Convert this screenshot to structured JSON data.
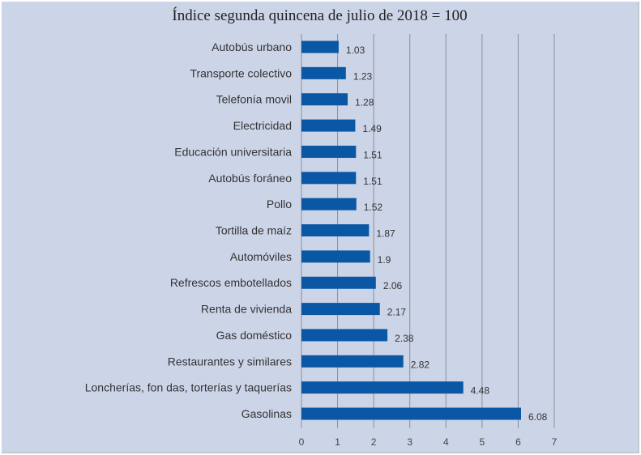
{
  "chart_data": {
    "type": "bar",
    "orientation": "horizontal",
    "title": "Índice segunda quincena de julio de 2018 = 100",
    "categories": [
      "Autobús urbano",
      "Transporte colectivo",
      "Telefonía movil",
      "Electricidad",
      "Educación universitaria",
      "Autobús foráneo",
      "Pollo",
      "Tortilla de maíz",
      "Automóviles",
      "Refrescos embotellados",
      "Renta de vivienda",
      "Gas doméstico",
      "Restaurantes y similares",
      "Loncherías, fon das, torterías y taquerías",
      "Gasolinas"
    ],
    "values": [
      1.03,
      1.23,
      1.28,
      1.49,
      1.51,
      1.51,
      1.52,
      1.87,
      1.9,
      2.06,
      2.17,
      2.38,
      2.82,
      4.48,
      6.08
    ],
    "value_labels": [
      "1.03",
      "1.23",
      "1.28",
      "1.49",
      "1.51",
      "1.51",
      "1.52",
      "1.87",
      "1.9",
      "2.06",
      "2.17",
      "2.38",
      "2.82",
      "4.48",
      "6.08"
    ],
    "xlim": [
      0,
      7
    ],
    "xticks": [
      0,
      1,
      2,
      3,
      4,
      5,
      6,
      7
    ],
    "xlabel": "",
    "ylabel": "",
    "grid": "vertical",
    "legend": "none",
    "bar_color": "#0a58a5",
    "background_color": "#ccd4e8",
    "grid_color": "#8a8f99"
  }
}
